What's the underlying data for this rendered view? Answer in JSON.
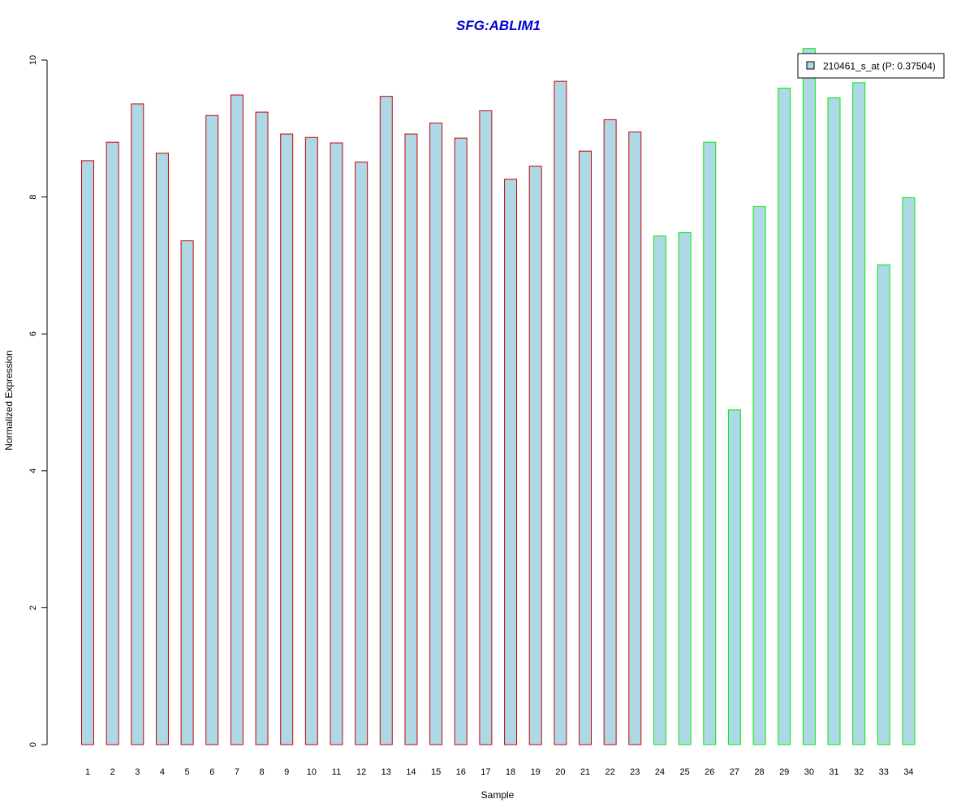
{
  "chart_data": {
    "type": "bar",
    "title": "SFG:ABLIM1",
    "title_color": "#0000cc",
    "xlabel": "Sample",
    "ylabel": "Normalized Expression",
    "ylim": [
      0,
      10
    ],
    "yticks": [
      "0",
      "2",
      "4",
      "6",
      "8",
      "10"
    ],
    "categories": [
      "1",
      "2",
      "3",
      "4",
      "5",
      "6",
      "7",
      "8",
      "9",
      "10",
      "11",
      "12",
      "13",
      "14",
      "15",
      "16",
      "17",
      "18",
      "19",
      "20",
      "21",
      "22",
      "23",
      "24",
      "25",
      "26",
      "27",
      "28",
      "29",
      "30",
      "31",
      "32",
      "33",
      "34"
    ],
    "values": [
      8.53,
      8.8,
      9.36,
      8.64,
      7.36,
      9.19,
      9.49,
      9.24,
      8.92,
      8.87,
      8.79,
      8.51,
      9.47,
      8.92,
      9.08,
      8.86,
      9.26,
      8.26,
      8.45,
      9.69,
      8.67,
      9.13,
      8.95,
      7.43,
      7.48,
      8.8,
      4.89,
      7.86,
      9.59,
      10.17,
      9.45,
      9.67,
      7.01,
      7.99
    ],
    "group_colors": {
      "group1": "#cc0000",
      "group2": "#00ee00"
    },
    "groups": [
      1,
      1,
      1,
      1,
      1,
      1,
      1,
      1,
      1,
      1,
      1,
      1,
      1,
      1,
      1,
      1,
      1,
      1,
      1,
      1,
      1,
      1,
      1,
      2,
      2,
      2,
      2,
      2,
      2,
      2,
      2,
      2,
      2,
      2
    ],
    "bar_fill": "#add8e6",
    "legend": {
      "position": "top-right",
      "label": "210461_s_at (P: 0.37504)"
    },
    "grid": false
  }
}
